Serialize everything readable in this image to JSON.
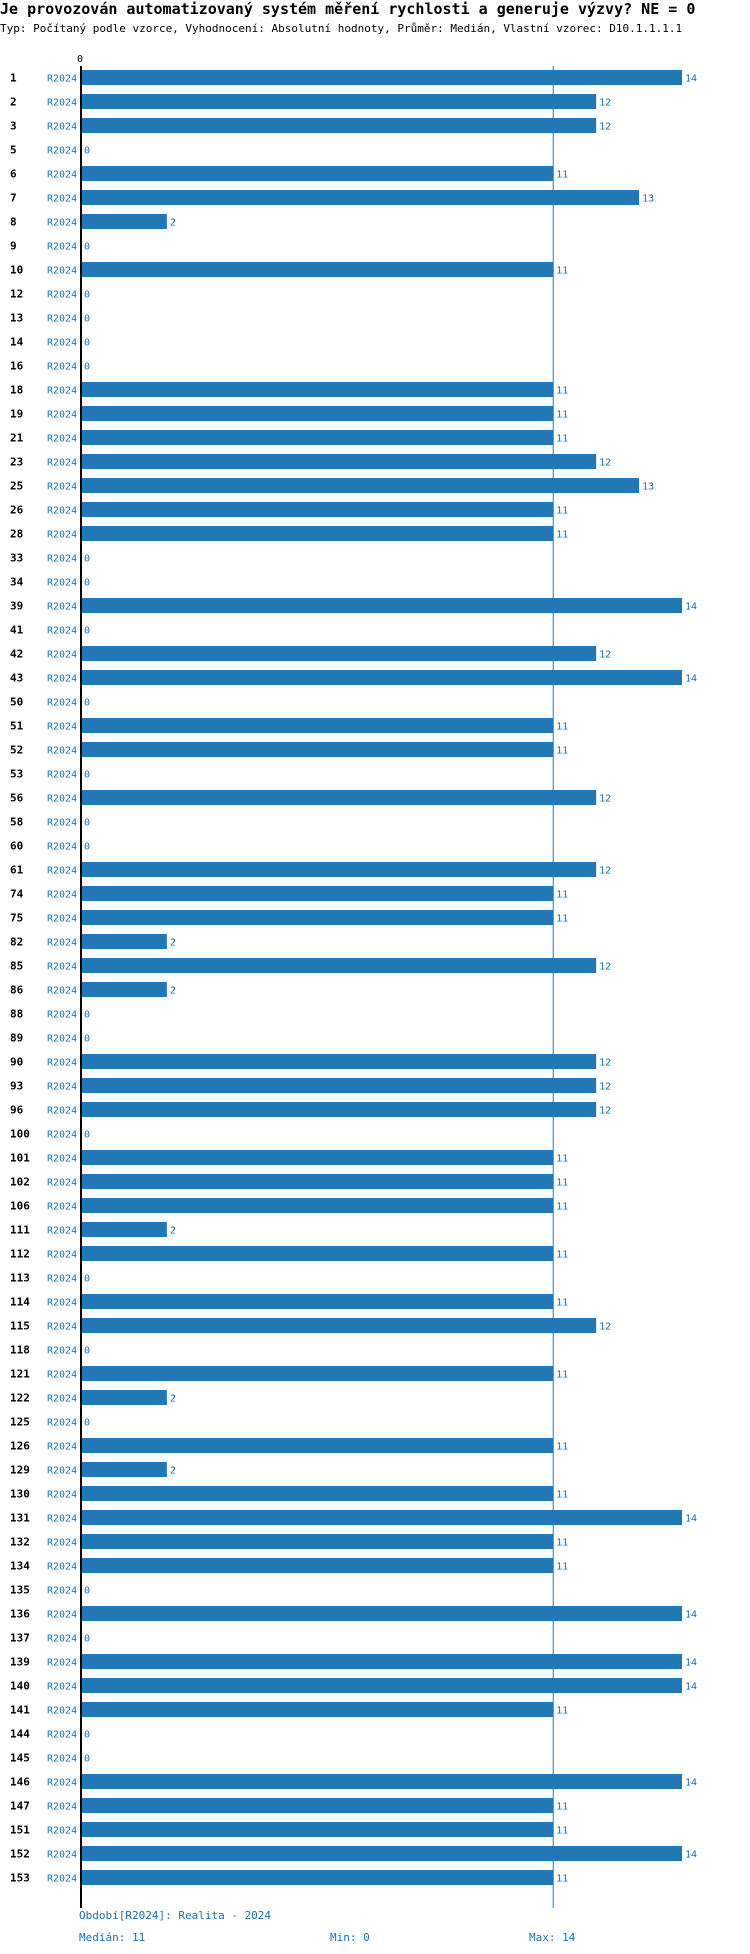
{
  "header": {
    "title": "Je provozován automatizovaný systém měření rychlosti a generuje výzvy? NE = 0",
    "subtitle": "Typ: Počítaný podle vzorce, Vyhodnocení: Absolutní hodnoty, Průměr: Medián, Vlastní vzorec: D10.1.1.1.1"
  },
  "colors": {
    "bar": "#2377b4",
    "value_label": "#1f6fb0",
    "axis": "#000000",
    "median_line": "#2377b4"
  },
  "chart_data": {
    "type": "bar",
    "orientation": "horizontal",
    "series_name": "R2024",
    "axis_tick": "0",
    "xlim": [
      0,
      14
    ],
    "median": 11,
    "categories": [
      "1",
      "2",
      "3",
      "5",
      "6",
      "7",
      "8",
      "9",
      "10",
      "12",
      "13",
      "14",
      "16",
      "18",
      "19",
      "21",
      "23",
      "25",
      "26",
      "28",
      "33",
      "34",
      "39",
      "41",
      "42",
      "43",
      "50",
      "51",
      "52",
      "53",
      "56",
      "58",
      "60",
      "61",
      "74",
      "75",
      "82",
      "85",
      "86",
      "88",
      "89",
      "90",
      "93",
      "96",
      "100",
      "101",
      "102",
      "106",
      "111",
      "112",
      "113",
      "114",
      "115",
      "118",
      "121",
      "122",
      "125",
      "126",
      "129",
      "130",
      "131",
      "132",
      "134",
      "135",
      "136",
      "137",
      "139",
      "140",
      "141",
      "144",
      "145",
      "146",
      "147",
      "151",
      "152",
      "153"
    ],
    "values": [
      14,
      12,
      12,
      0,
      11,
      13,
      2,
      0,
      11,
      0,
      0,
      0,
      0,
      11,
      11,
      11,
      12,
      13,
      11,
      11,
      0,
      0,
      14,
      0,
      12,
      14,
      0,
      11,
      11,
      0,
      12,
      0,
      0,
      12,
      11,
      11,
      2,
      12,
      2,
      0,
      0,
      12,
      12,
      12,
      0,
      11,
      11,
      11,
      2,
      11,
      0,
      11,
      12,
      0,
      11,
      2,
      0,
      11,
      2,
      11,
      14,
      11,
      11,
      0,
      14,
      0,
      14,
      14,
      11,
      0,
      0,
      14,
      11,
      11,
      14,
      11
    ]
  },
  "footer": {
    "period": "Období[R2024]: Realita - 2024",
    "median": "Medián: 11",
    "min": "Min: 0",
    "max": "Max: 14"
  }
}
